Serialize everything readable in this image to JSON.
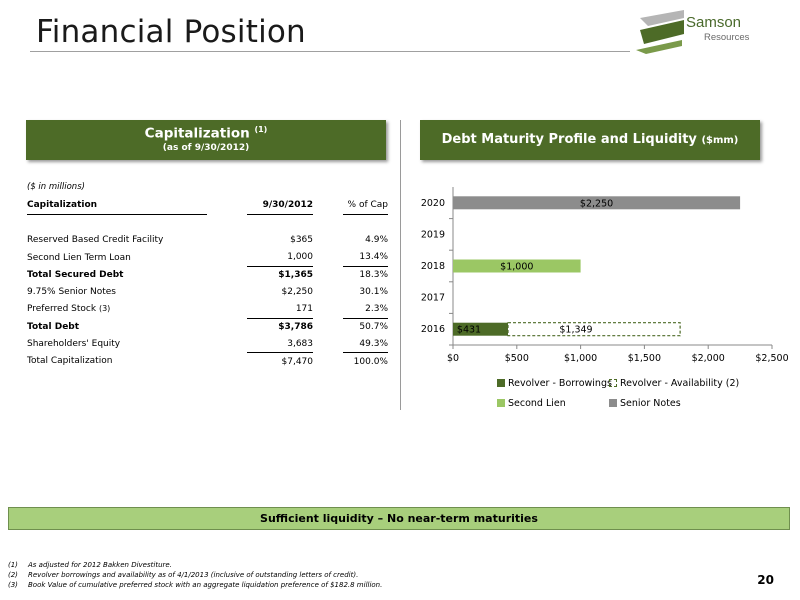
{
  "page": {
    "title": "Financial Position",
    "page_number": "20",
    "brand": {
      "name": "Samson",
      "sub": "Resources",
      "accent": "#4d6b27"
    }
  },
  "capitalization": {
    "header_title": "Capitalization",
    "header_note": "(1)",
    "header_sub": "(as of 9/30/2012)",
    "units": "($ in millions)",
    "columns": [
      "Capitalization",
      "9/30/2012",
      "% of Cap"
    ],
    "rows": [
      {
        "label": "Reserved Based Credit Facility",
        "note": "",
        "value": "$365",
        "pct": "4.9%",
        "bold": false,
        "underline": false
      },
      {
        "label": "Second Lien Term Loan",
        "note": "",
        "value": "1,000",
        "pct": "13.4%",
        "bold": false,
        "underline": true
      },
      {
        "label": "Total Secured Debt",
        "note": "",
        "value": "$1,365",
        "pct": "18.3%",
        "bold": true,
        "underline": false
      },
      {
        "label": "9.75% Senior Notes",
        "note": "",
        "value": "$2,250",
        "pct": "30.1%",
        "bold": false,
        "underline": false
      },
      {
        "label": "Preferred Stock",
        "note": "(3)",
        "value": "171",
        "pct": "2.3%",
        "bold": false,
        "underline": true
      },
      {
        "label": "Total Debt",
        "note": "",
        "value": "$3,786",
        "pct": "50.7%",
        "bold": true,
        "underline": false
      },
      {
        "label": "Shareholders' Equity",
        "note": "",
        "value": "3,683",
        "pct": "49.3%",
        "bold": false,
        "underline": true
      },
      {
        "label": "Total Capitalization",
        "note": "",
        "value": "$7,470",
        "pct": "100.0%",
        "bold": false,
        "underline": false
      }
    ]
  },
  "debt": {
    "header_title": "Debt Maturity Profile and Liquidity",
    "header_units": "($mm)"
  },
  "chart_data": {
    "type": "bar",
    "orientation": "horizontal",
    "stacked": true,
    "categories": [
      "2016",
      "2017",
      "2018",
      "2019",
      "2020"
    ],
    "xlim": [
      0,
      2500
    ],
    "x_ticks": [
      "$0",
      "$500",
      "$1,000",
      "$1,500",
      "$2,000",
      "$2,500"
    ],
    "grid": false,
    "legend_position": "bottom",
    "series": [
      {
        "name": "Revolver - Borrowings",
        "values": [
          431,
          0,
          0,
          0,
          0
        ],
        "labels": [
          "$431",
          "",
          "",
          "",
          ""
        ],
        "color": "#4d6b27",
        "style": "solid"
      },
      {
        "name": "Revolver - Availability",
        "name_note": "(2)",
        "values": [
          1349,
          0,
          0,
          0,
          0
        ],
        "labels": [
          "$1,349",
          "",
          "",
          "",
          ""
        ],
        "color": "#4d6b27",
        "style": "dashed-outline"
      },
      {
        "name": "Second Lien",
        "values": [
          0,
          0,
          1000,
          0,
          0
        ],
        "labels": [
          "",
          "",
          "$1,000",
          "",
          ""
        ],
        "color": "#9bc764",
        "style": "solid"
      },
      {
        "name": "Senior Notes",
        "values": [
          0,
          0,
          0,
          0,
          2250
        ],
        "labels": [
          "",
          "",
          "",
          "",
          "$2,250"
        ],
        "color": "#8c8c8c",
        "style": "solid"
      }
    ]
  },
  "banner": "Sufficient liquidity – No near-term maturities",
  "footnotes": [
    {
      "num": "(1)",
      "text": "As adjusted for 2012 Bakken Divestiture."
    },
    {
      "num": "(2)",
      "text": "Revolver borrowings and availability as of 4/1/2013 (inclusive of outstanding letters of credit)."
    },
    {
      "num": "(3)",
      "text": "Book Value of cumulative preferred stock with an aggregate liquidation preference of $182.8 million."
    }
  ]
}
